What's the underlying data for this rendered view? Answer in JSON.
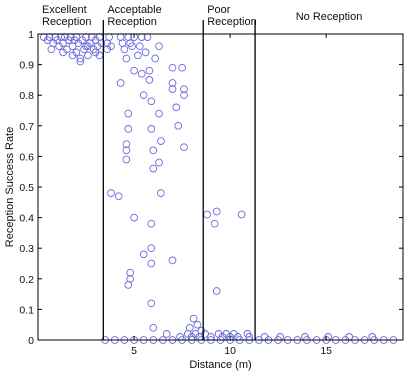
{
  "chart_data": {
    "type": "scatter",
    "title": "",
    "xlabel": "Distance (m)",
    "ylabel": "Reception Success Rate",
    "xlim": [
      0,
      19
    ],
    "ylim": [
      0,
      1
    ],
    "xticks": [
      5,
      10,
      15
    ],
    "yticks": [
      0,
      0.1,
      0.2,
      0.3,
      0.4,
      0.5,
      0.6,
      0.7,
      0.8,
      0.9,
      1
    ],
    "grid": false,
    "marker": "open-circle",
    "color": "#6b6bdc",
    "regions": [
      {
        "lines": [
          "Excellent",
          "Reception"
        ]
      },
      {
        "lines": [
          "Acceptable",
          "Reception"
        ]
      },
      {
        "lines": [
          "Poor",
          "Reception"
        ]
      },
      {
        "lines": [
          "No Reception"
        ]
      }
    ],
    "boundaries": [
      3.4,
      8.6,
      11.3
    ],
    "points": [
      [
        0.3,
        0.99
      ],
      [
        0.5,
        0.98
      ],
      [
        0.6,
        0.99
      ],
      [
        0.8,
        0.97
      ],
      [
        0.9,
        0.99
      ],
      [
        1.0,
        0.98
      ],
      [
        1.1,
        0.96
      ],
      [
        1.2,
        0.99
      ],
      [
        1.3,
        0.97
      ],
      [
        1.4,
        0.99
      ],
      [
        1.5,
        0.95
      ],
      [
        1.6,
        0.98
      ],
      [
        1.7,
        0.99
      ],
      [
        1.8,
        0.96
      ],
      [
        1.9,
        0.98
      ],
      [
        2.0,
        0.94
      ],
      [
        2.0,
        0.99
      ],
      [
        2.1,
        0.97
      ],
      [
        2.2,
        0.92
      ],
      [
        2.3,
        0.98
      ],
      [
        2.4,
        0.95
      ],
      [
        2.5,
        0.99
      ],
      [
        2.5,
        0.96
      ],
      [
        2.6,
        0.93
      ],
      [
        2.7,
        0.97
      ],
      [
        2.8,
        0.99
      ],
      [
        2.9,
        0.95
      ],
      [
        3.0,
        0.98
      ],
      [
        3.0,
        0.94
      ],
      [
        3.1,
        0.96
      ],
      [
        3.2,
        0.99
      ],
      [
        3.3,
        0.97
      ],
      [
        0.7,
        0.95
      ],
      [
        1.3,
        0.94
      ],
      [
        1.8,
        0.93
      ],
      [
        2.2,
        0.91
      ],
      [
        2.6,
        0.96
      ],
      [
        3.2,
        0.93
      ],
      [
        3.6,
        0.97
      ],
      [
        3.6,
        0.95
      ],
      [
        3.7,
        0.99
      ],
      [
        3.8,
        0.96
      ],
      [
        3.8,
        0.48
      ],
      [
        4.2,
        0.47
      ],
      [
        4.3,
        0.99
      ],
      [
        4.3,
        0.84
      ],
      [
        4.4,
        0.97
      ],
      [
        4.5,
        0.95
      ],
      [
        4.6,
        0.92
      ],
      [
        4.7,
        0.99
      ],
      [
        4.7,
        0.74
      ],
      [
        4.7,
        0.69
      ],
      [
        4.6,
        0.64
      ],
      [
        4.6,
        0.62
      ],
      [
        4.6,
        0.59
      ],
      [
        4.8,
        0.97
      ],
      [
        4.8,
        0.22
      ],
      [
        4.8,
        0.2
      ],
      [
        4.7,
        0.18
      ],
      [
        4.9,
        0.96
      ],
      [
        5.0,
        0.99
      ],
      [
        5.0,
        0.88
      ],
      [
        5.2,
        0.93
      ],
      [
        5.3,
        0.96
      ],
      [
        5.4,
        0.99
      ],
      [
        5.4,
        0.87
      ],
      [
        5.5,
        0.28
      ],
      [
        5.6,
        0.94
      ],
      [
        5.7,
        0.99
      ],
      [
        5.8,
        0.88
      ],
      [
        5.8,
        0.85
      ],
      [
        5.9,
        0.78
      ],
      [
        5.9,
        0.69
      ],
      [
        6.0,
        0.62
      ],
      [
        6.0,
        0.56
      ],
      [
        5.9,
        0.38
      ],
      [
        5.9,
        0.3
      ],
      [
        5.9,
        0.25
      ],
      [
        5.9,
        0.12
      ],
      [
        6.0,
        0.04
      ],
      [
        6.1,
        0.92
      ],
      [
        6.3,
        0.96
      ],
      [
        6.3,
        0.74
      ],
      [
        6.4,
        0.65
      ],
      [
        6.4,
        0.48
      ],
      [
        7.0,
        0.89
      ],
      [
        7.0,
        0.84
      ],
      [
        7.0,
        0.82
      ],
      [
        7.0,
        0.26
      ],
      [
        7.2,
        0.76
      ],
      [
        7.3,
        0.7
      ],
      [
        7.5,
        0.89
      ],
      [
        7.6,
        0.82
      ],
      [
        7.6,
        0.8
      ],
      [
        7.6,
        0.63
      ],
      [
        5.0,
        0.4
      ],
      [
        6.3,
        0.58
      ],
      [
        5.5,
        0.8
      ],
      [
        7.9,
        0.04
      ],
      [
        8.1,
        0.07
      ],
      [
        8.3,
        0.05
      ],
      [
        8.5,
        0.03
      ],
      [
        6.7,
        0.02
      ],
      [
        7.4,
        0.01
      ],
      [
        7.8,
        0.02
      ],
      [
        8.0,
        0.01
      ],
      [
        8.2,
        0.02
      ],
      [
        8.4,
        0.01
      ],
      [
        8.7,
        0.02
      ],
      [
        8.8,
        0.41
      ],
      [
        9.0,
        0.01
      ],
      [
        9.2,
        0.38
      ],
      [
        9.3,
        0.42
      ],
      [
        9.3,
        0.16
      ],
      [
        9.4,
        0.02
      ],
      [
        9.6,
        0.01
      ],
      [
        9.8,
        0.02
      ],
      [
        10.0,
        0.01
      ],
      [
        10.2,
        0.02
      ],
      [
        10.4,
        0.01
      ],
      [
        10.6,
        0.41
      ],
      [
        10.9,
        0.02
      ],
      [
        11.0,
        0.01
      ],
      [
        3.5,
        0.0
      ],
      [
        4.0,
        0.0
      ],
      [
        4.5,
        0.0
      ],
      [
        5.0,
        0.0
      ],
      [
        5.5,
        0.0
      ],
      [
        6.0,
        0.0
      ],
      [
        6.5,
        0.0
      ],
      [
        7.0,
        0.0
      ],
      [
        7.5,
        0.0
      ],
      [
        8.0,
        0.0
      ],
      [
        8.5,
        0.0
      ],
      [
        9.0,
        0.0
      ],
      [
        9.5,
        0.0
      ],
      [
        10.0,
        0.0
      ],
      [
        10.5,
        0.0
      ],
      [
        11.0,
        0.0
      ],
      [
        11.5,
        0.0
      ],
      [
        12.0,
        0.0
      ],
      [
        12.5,
        0.0
      ],
      [
        13.0,
        0.0
      ],
      [
        13.5,
        0.0
      ],
      [
        14.0,
        0.0
      ],
      [
        14.5,
        0.0
      ],
      [
        15.0,
        0.0
      ],
      [
        15.5,
        0.0
      ],
      [
        16.0,
        0.0
      ],
      [
        16.5,
        0.0
      ],
      [
        17.0,
        0.0
      ],
      [
        17.5,
        0.0
      ],
      [
        18.0,
        0.0
      ],
      [
        18.5,
        0.0
      ],
      [
        11.8,
        0.01
      ],
      [
        12.6,
        0.01
      ],
      [
        13.9,
        0.01
      ],
      [
        15.1,
        0.01
      ],
      [
        16.2,
        0.01
      ],
      [
        17.4,
        0.01
      ]
    ]
  }
}
